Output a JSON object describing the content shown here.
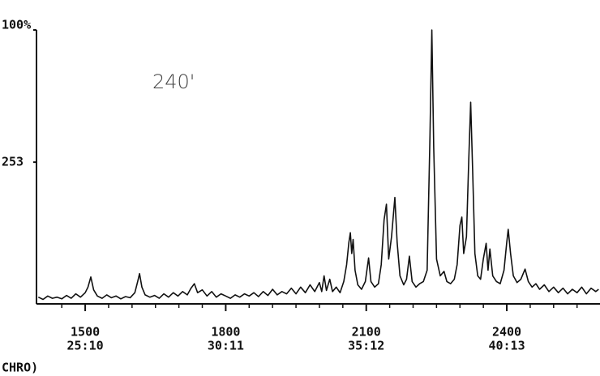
{
  "chart_data": {
    "type": "line",
    "annotation": "240'",
    "footer": "CHRO)",
    "color": "#111111",
    "x": [
      1400,
      1410,
      1420,
      1430,
      1440,
      1450,
      1460,
      1470,
      1480,
      1490,
      1500,
      1506,
      1512,
      1518,
      1526,
      1536,
      1546,
      1556,
      1566,
      1576,
      1586,
      1596,
      1606,
      1612,
      1616,
      1621,
      1628,
      1638,
      1648,
      1658,
      1668,
      1678,
      1688,
      1698,
      1708,
      1718,
      1726,
      1733,
      1740,
      1750,
      1760,
      1770,
      1780,
      1790,
      1800,
      1810,
      1820,
      1830,
      1840,
      1850,
      1860,
      1870,
      1880,
      1890,
      1900,
      1910,
      1920,
      1930,
      1940,
      1950,
      1960,
      1970,
      1980,
      1990,
      2000,
      2005,
      2010,
      2015,
      2022,
      2028,
      2036,
      2044,
      2052,
      2058,
      2063,
      2066,
      2069,
      2072,
      2076,
      2082,
      2090,
      2098,
      2105,
      2110,
      2118,
      2126,
      2132,
      2138,
      2143,
      2148,
      2154,
      2161,
      2166,
      2172,
      2180,
      2186,
      2192,
      2198,
      2206,
      2214,
      2222,
      2230,
      2236,
      2240,
      2244,
      2250,
      2258,
      2266,
      2272,
      2280,
      2288,
      2294,
      2300,
      2304,
      2308,
      2314,
      2319,
      2323,
      2327,
      2332,
      2338,
      2344,
      2350,
      2356,
      2360,
      2364,
      2370,
      2378,
      2386,
      2394,
      2400,
      2403,
      2408,
      2414,
      2422,
      2430,
      2439,
      2446,
      2454,
      2462,
      2470,
      2480,
      2490,
      2500,
      2510,
      2520,
      2530,
      2540,
      2550,
      2560,
      2570,
      2580,
      2590,
      2596
    ],
    "values": [
      12,
      8,
      14,
      10,
      12,
      9,
      15,
      10,
      18,
      12,
      20,
      30,
      48,
      25,
      14,
      10,
      16,
      11,
      14,
      9,
      13,
      11,
      20,
      40,
      54,
      30,
      16,
      12,
      15,
      10,
      18,
      12,
      20,
      14,
      22,
      16,
      28,
      36,
      20,
      25,
      14,
      22,
      12,
      18,
      14,
      10,
      16,
      12,
      18,
      14,
      20,
      13,
      22,
      15,
      26,
      16,
      22,
      18,
      28,
      18,
      30,
      20,
      34,
      22,
      38,
      22,
      50,
      24,
      44,
      22,
      30,
      20,
      40,
      70,
      110,
      127,
      90,
      115,
      60,
      34,
      26,
      40,
      82,
      40,
      30,
      36,
      70,
      150,
      178,
      80,
      120,
      190,
      110,
      50,
      34,
      44,
      85,
      40,
      30,
      36,
      40,
      60,
      300,
      489,
      280,
      80,
      50,
      58,
      40,
      36,
      44,
      70,
      140,
      155,
      90,
      120,
      260,
      360,
      240,
      90,
      50,
      44,
      80,
      108,
      60,
      98,
      50,
      40,
      36,
      60,
      110,
      133,
      90,
      50,
      38,
      44,
      62,
      40,
      30,
      36,
      26,
      34,
      22,
      30,
      20,
      28,
      18,
      26,
      20,
      30,
      18,
      28,
      22,
      26
    ],
    "xlim": [
      1396,
      2599
    ],
    "xticks": [
      1500,
      1800,
      2100,
      2400
    ],
    "time_labels": [
      "25:10",
      "30:11",
      "35:12",
      "40:13"
    ],
    "minor_xticks": [
      1450,
      1550,
      1600,
      1650,
      1700,
      1750,
      1850,
      1900,
      1950,
      2000,
      2050,
      2150,
      2200,
      2250,
      2300,
      2350,
      2450,
      2500,
      2550
    ],
    "ylim": [
      0,
      489
    ],
    "yticks": [
      {
        "value": 489,
        "label": "100%"
      },
      253
    ]
  }
}
